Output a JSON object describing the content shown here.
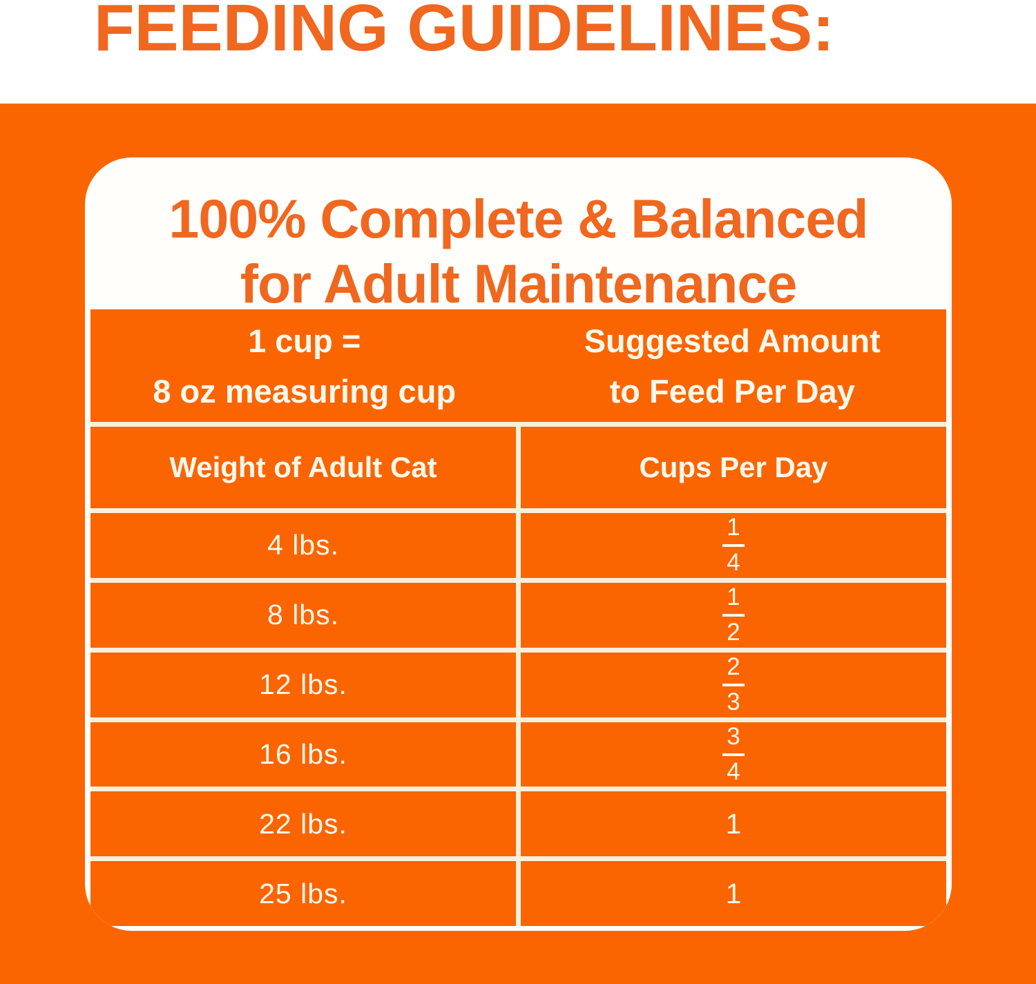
{
  "colors": {
    "background_orange": "#fa6502",
    "heading_text_orange": "#f0671f",
    "card_white": "#fffefb",
    "gridline_cream": "#f6f0dd",
    "table_text_cream": "#fcf8ec"
  },
  "page_heading": "FEEDING GUIDELINES:",
  "card": {
    "title_line1": "100% Complete & Balanced",
    "title_line2": "for Adult Maintenance",
    "table": {
      "header_col1_line1": "1 cup =",
      "header_col1_line2": "8 oz measuring cup",
      "header_col2_line1": "Suggested Amount",
      "header_col2_line2": "to Feed Per Day",
      "subheader_col1": "Weight of Adult Cat",
      "subheader_col2": "Cups Per Day",
      "rows": [
        {
          "weight": "4 lbs.",
          "cups_text": "1/4",
          "cups_num": "1",
          "cups_den": "4"
        },
        {
          "weight": "8 lbs.",
          "cups_text": "1/2",
          "cups_num": "1",
          "cups_den": "2"
        },
        {
          "weight": "12 lbs.",
          "cups_text": "2/3",
          "cups_num": "2",
          "cups_den": "3"
        },
        {
          "weight": "16 lbs.",
          "cups_text": "3/4",
          "cups_num": "3",
          "cups_den": "4"
        },
        {
          "weight": "22 lbs.",
          "cups_text": "1",
          "cups_whole": "1"
        },
        {
          "weight": "25 lbs.",
          "cups_text": "1",
          "cups_whole": "1"
        }
      ]
    }
  },
  "chart_data": {
    "type": "table",
    "title": "100% Complete & Balanced for Adult Maintenance",
    "columns": [
      "Weight of Adult Cat",
      "Cups Per Day"
    ],
    "categories": [
      "4 lbs.",
      "8 lbs.",
      "12 lbs.",
      "16 lbs.",
      "22 lbs.",
      "25 lbs."
    ],
    "values": [
      "1/4",
      "1/2",
      "2/3",
      "3/4",
      "1",
      "1"
    ],
    "notes": [
      "1 cup = 8 oz measuring cup",
      "Suggested Amount to Feed Per Day"
    ]
  }
}
